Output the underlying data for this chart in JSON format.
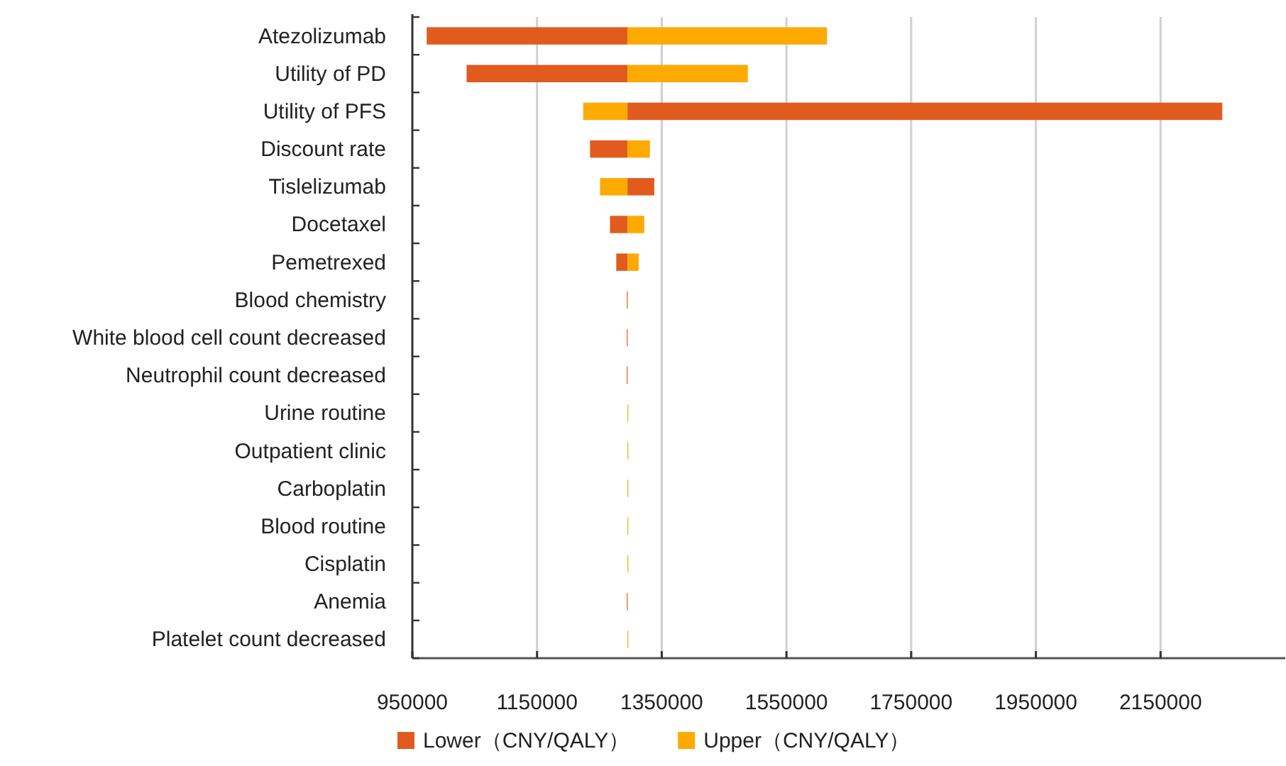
{
  "chart_data": {
    "type": "bar",
    "orientation": "horizontal",
    "categories": [
      "Atezolizumab",
      "Utility of PD",
      "Utility of PFS",
      "Discount rate",
      "Tislelizumab",
      "Docetaxel",
      "Pemetrexed",
      "Blood chemistry",
      "White blood cell count decreased",
      "Neutrophil count decreased",
      "Urine routine",
      "Outpatient clinic",
      "Carboplatin",
      "Blood routine",
      "Cisplatin",
      "Anemia",
      "Platelet count decreased"
    ],
    "series": [
      {
        "name": "Lower（CNY/QALY）",
        "color": "#e15b1f",
        "base": [
          973000,
          1037000,
          1295000,
          1235000,
          1295000,
          1267000,
          1277000,
          1294000,
          1294000,
          1294000,
          null,
          null,
          null,
          null,
          null,
          1294000,
          null
        ],
        "values": [
          322000,
          258000,
          954000,
          60000,
          43000,
          28000,
          18000,
          1000,
          1000,
          1000,
          null,
          null,
          null,
          null,
          null,
          1000,
          null
        ]
      },
      {
        "name": "Upper（CNY/QALY）",
        "color": "#ffaa00",
        "base": [
          1295000,
          1295000,
          1224000,
          1295000,
          1251000,
          1295000,
          1295000,
          null,
          null,
          null,
          1295000,
          1295000,
          1295000,
          1295000,
          1295000,
          null,
          1295000
        ],
        "values": [
          320000,
          193000,
          71000,
          36000,
          44000,
          27000,
          18000,
          null,
          null,
          null,
          1000,
          1000,
          1000,
          1000,
          1000,
          null,
          1000
        ]
      }
    ],
    "xlim": [
      950000,
      2350000
    ],
    "xticks": [
      950000,
      1150000,
      1350000,
      1550000,
      1750000,
      1950000,
      2150000
    ],
    "grid": "x",
    "legend": "bottom"
  }
}
